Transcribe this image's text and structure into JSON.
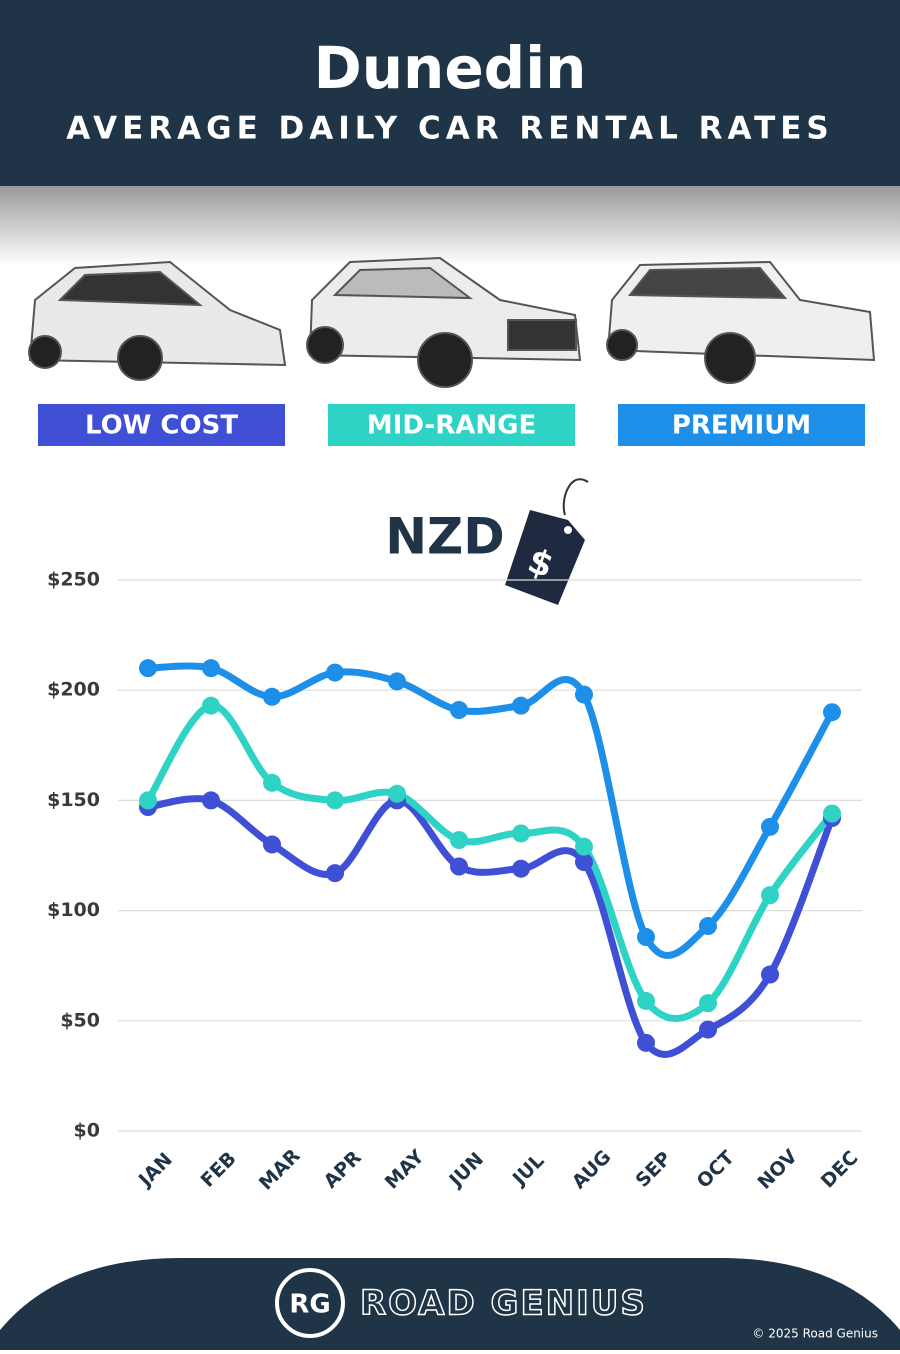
{
  "chart_data": {
    "type": "line",
    "title": "Dunedin",
    "subtitle": "AVERAGE DAILY CAR RENTAL RATES",
    "annotation": "NZD",
    "categories": [
      "JAN",
      "FEB",
      "MAR",
      "APR",
      "MAY",
      "JUN",
      "JUL",
      "AUG",
      "SEP",
      "OCT",
      "NOV",
      "DEC"
    ],
    "series": [
      {
        "name": "LOW COST",
        "color": "#3f4fd6",
        "values": [
          147,
          150,
          130,
          117,
          150,
          120,
          119,
          122,
          40,
          46,
          71,
          142
        ]
      },
      {
        "name": "MID-RANGE",
        "color": "#2ed3c6",
        "values": [
          150,
          193,
          158,
          150,
          153,
          132,
          135,
          129,
          59,
          58,
          107,
          144
        ]
      },
      {
        "name": "PREMIUM",
        "color": "#1e8fe8",
        "values": [
          210,
          210,
          197,
          208,
          204,
          191,
          193,
          198,
          88,
          93,
          138,
          190
        ]
      }
    ],
    "ylim": [
      0,
      250
    ],
    "yticks": [
      {
        "value": 0,
        "label": "$0"
      },
      {
        "value": 50,
        "label": "$50"
      },
      {
        "value": 100,
        "label": "$100"
      },
      {
        "value": 150,
        "label": "$150"
      },
      {
        "value": 200,
        "label": "$200"
      },
      {
        "value": 250,
        "label": "$250"
      }
    ],
    "grid": true
  },
  "footer": {
    "logo": "RG",
    "brand": "ROAD GENIUS",
    "copyright": "© 2025 Road Genius"
  }
}
